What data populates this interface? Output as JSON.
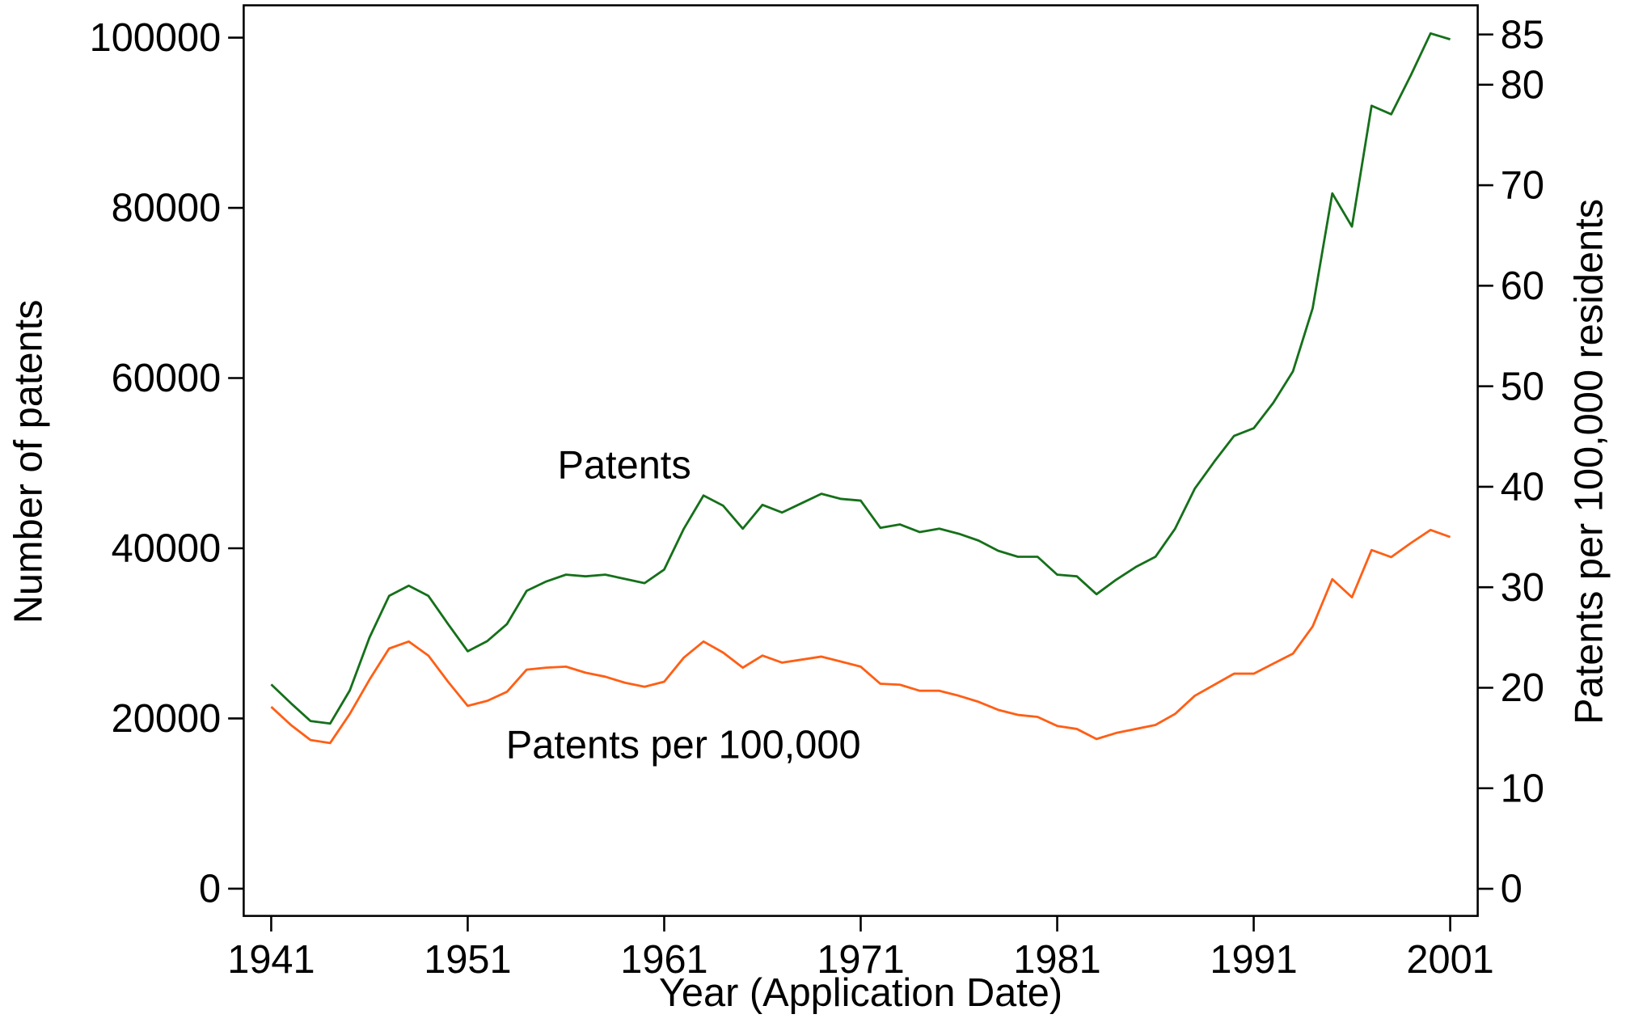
{
  "chart_data": {
    "type": "line",
    "x_label": "Year (Application Date)",
    "y_label": "Number of patents",
    "y2_label": "Patents per 100,000 residents",
    "x": [
      1941,
      1942,
      1943,
      1944,
      1945,
      1946,
      1947,
      1948,
      1949,
      1950,
      1951,
      1952,
      1953,
      1954,
      1955,
      1956,
      1957,
      1958,
      1959,
      1960,
      1961,
      1962,
      1963,
      1964,
      1965,
      1966,
      1967,
      1968,
      1969,
      1970,
      1971,
      1972,
      1973,
      1974,
      1975,
      1976,
      1977,
      1978,
      1979,
      1980,
      1981,
      1982,
      1983,
      1984,
      1985,
      1986,
      1987,
      1988,
      1989,
      1990,
      1991,
      1992,
      1993,
      1994,
      1995,
      1996,
      1997,
      1998,
      1999,
      2000,
      2001
    ],
    "series": [
      {
        "name": "Patents",
        "color": "#15701a",
        "axis": "y",
        "values": [
          24000,
          21800,
          19700,
          19400,
          23300,
          29500,
          34400,
          35600,
          34400,
          31100,
          27900,
          29100,
          31100,
          35000,
          36100,
          36900,
          36700,
          36900,
          36400,
          35900,
          37500,
          42300,
          46200,
          45000,
          42300,
          45100,
          44200,
          45300,
          46400,
          45800,
          45600,
          42400,
          42800,
          41900,
          42300,
          41700,
          40900,
          39700,
          39000,
          39000,
          36900,
          36700,
          34600,
          36300,
          37800,
          39000,
          42300,
          47000,
          50200,
          53200,
          54100,
          57100,
          60800,
          68200,
          81700,
          77800,
          92000,
          91000,
          95600,
          100500,
          99800
        ]
      },
      {
        "name": "Patents per 100,000",
        "color": "#ff5f15",
        "axis": "y2",
        "values": [
          18.1,
          16.3,
          14.8,
          14.5,
          17.4,
          20.8,
          23.9,
          24.6,
          23.2,
          20.6,
          18.2,
          18.7,
          19.6,
          21.8,
          22.0,
          22.1,
          21.5,
          21.1,
          20.5,
          20.1,
          20.6,
          23.0,
          24.6,
          23.5,
          22.0,
          23.2,
          22.5,
          22.8,
          23.1,
          22.6,
          22.1,
          20.4,
          20.3,
          19.7,
          19.7,
          19.2,
          18.6,
          17.8,
          17.3,
          17.1,
          16.2,
          15.9,
          14.9,
          15.5,
          15.9,
          16.3,
          17.4,
          19.2,
          20.3,
          21.4,
          21.4,
          22.4,
          23.4,
          26.1,
          30.8,
          29.0,
          33.7,
          33.0,
          34.4,
          35.7,
          35.0
        ]
      }
    ],
    "xlim": [
      1939.6,
      2002.4
    ],
    "xticks": [
      1941,
      1951,
      1961,
      1971,
      1981,
      1991,
      2001
    ],
    "ylim": [
      -3200,
      103800
    ],
    "yticks": [
      0,
      20000,
      40000,
      60000,
      80000,
      100000
    ],
    "y2lim": [
      -2.7,
      87.9
    ],
    "y2ticks": [
      0,
      10,
      20,
      30,
      40,
      50,
      60,
      70,
      80,
      85
    ]
  }
}
